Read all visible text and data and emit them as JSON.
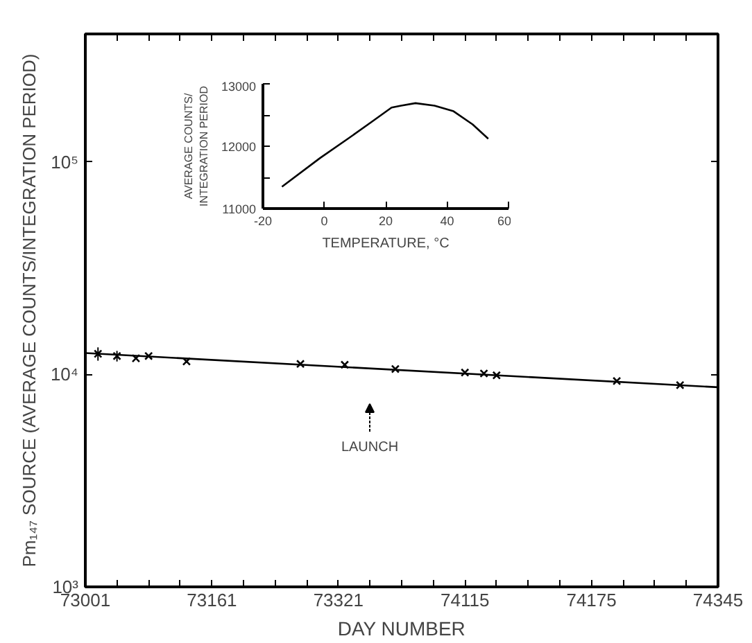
{
  "chart_data": [
    {
      "type": "scatter",
      "xlabel": "DAY NUMBER",
      "ylabel": "Pm₁₄₇ SOURCE (AVERAGE COUNTS/INTEGRATION PERIOD)",
      "log": "y",
      "ylim": [
        1000,
        400000
      ],
      "categories": [
        "73001",
        null,
        null,
        null,
        null,
        null,
        null,
        null,
        null,
        null,
        null,
        null,
        null,
        null,
        null,
        null,
        null,
        null,
        null,
        null,
        "73161",
        null,
        null,
        null,
        null,
        null,
        null,
        null,
        null,
        null,
        null,
        null,
        null,
        null,
        null,
        null,
        null,
        null,
        null,
        null,
        "73321",
        null,
        null,
        null,
        null,
        null,
        null,
        null,
        null,
        null,
        null,
        null,
        null,
        null,
        null,
        null,
        null,
        null,
        null,
        null,
        "74115",
        null,
        null,
        null,
        null,
        null,
        null,
        null,
        null,
        null,
        null,
        null,
        null,
        null,
        null,
        null,
        null,
        null,
        null,
        null,
        "74175",
        null,
        null,
        null,
        null,
        null,
        null,
        null,
        null,
        null,
        null,
        null,
        null,
        null,
        null,
        null,
        null,
        null,
        null,
        null,
        "74345"
      ],
      "yticks": [
        {
          "value": 1000,
          "label": "10³"
        },
        {
          "value": 10000,
          "label": "10⁴"
        },
        {
          "value": 100000,
          "label": "10⁵"
        }
      ],
      "series": [
        {
          "type": "scatter",
          "marker": "cross",
          "color": "#000000",
          "values": [
            null,
            null,
            12500,
            null,
            null,
            12200,
            null,
            null,
            11900,
            null,
            12200,
            null,
            null,
            null,
            null,
            null,
            11500,
            null,
            null,
            null,
            null,
            null,
            null,
            null,
            null,
            null,
            null,
            null,
            null,
            null,
            null,
            null,
            null,
            null,
            11200,
            null,
            null,
            null,
            null,
            null,
            null,
            11100,
            null,
            null,
            null,
            null,
            null,
            null,
            null,
            10600,
            null,
            null,
            null,
            null,
            null,
            null,
            null,
            null,
            null,
            null,
            10200,
            null,
            null,
            10100,
            null,
            9900,
            null,
            null,
            null,
            null,
            null,
            null,
            null,
            null,
            null,
            null,
            null,
            null,
            null,
            null,
            null,
            null,
            null,
            null,
            9300,
            null,
            null,
            null,
            null,
            null,
            null,
            null,
            null,
            null,
            8900,
            null,
            null,
            null,
            null,
            null,
            null
          ],
          "errors": [
            null,
            null,
            900,
            null,
            null,
            700,
            null,
            null,
            null,
            null,
            null,
            null,
            null,
            null,
            null,
            null,
            null,
            null,
            null,
            null,
            null,
            null,
            null,
            null,
            null,
            null,
            null,
            null,
            null,
            null,
            null,
            null,
            null,
            null,
            null,
            null,
            null,
            null,
            null,
            null,
            null,
            null,
            null,
            null,
            null,
            null,
            null,
            null,
            null,
            null,
            null,
            null,
            null,
            null,
            null,
            null,
            null,
            null,
            null,
            null,
            null,
            null,
            null,
            null,
            null,
            null,
            null,
            null,
            null,
            null,
            null,
            null,
            null,
            null,
            null,
            null,
            null,
            null,
            null,
            null,
            null,
            null,
            null,
            null,
            null,
            null,
            null,
            null,
            null,
            null,
            null,
            null,
            null,
            null,
            null,
            null,
            null,
            null,
            null,
            null,
            null
          ]
        },
        {
          "type": "line",
          "marker": "none",
          "color": "#000000",
          "x": [
            "73001",
            "74345"
          ],
          "values": [
            12600,
            8700
          ]
        }
      ],
      "annotations": [
        "LAUNCH"
      ]
    },
    {
      "type": "line",
      "xlabel": "TEMPERATURE, °C",
      "ylabel": "AVERAGE COUNTS/\nINTEGRATION PERIOD",
      "xlim": [
        -20,
        60
      ],
      "ylim": [
        11000,
        13000
      ],
      "xticks": [
        -20,
        0,
        20,
        40,
        60
      ],
      "yticks": [
        11000,
        {
          "value": 11500,
          "label": null
        },
        12000,
        {
          "value": 12500,
          "label": null
        },
        13000
      ],
      "series": [
        {
          "color": "#000000",
          "x": [
            -13.8,
            -1.4,
            8.0,
            15.7,
            21.9,
            25.0,
            29.7,
            35.9,
            42.1,
            48.3,
            53.4
          ],
          "values": [
            11350,
            11810,
            12130,
            12400,
            12620,
            12650,
            12690,
            12650,
            12560,
            12350,
            12120
          ]
        }
      ]
    }
  ]
}
